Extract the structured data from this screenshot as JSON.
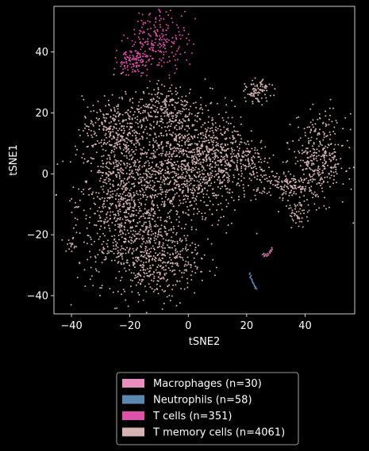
{
  "chart_data": {
    "type": "scatter",
    "xlabel": "tSNE2",
    "ylabel": "tSNE1",
    "xlim": [
      -46,
      57
    ],
    "ylim": [
      -46,
      55
    ],
    "xticks": [
      -40,
      -20,
      0,
      20,
      40
    ],
    "yticks": [
      -40,
      -20,
      0,
      20,
      40
    ],
    "xtick_labels": [
      "−40",
      "−20",
      "0",
      "20",
      "40"
    ],
    "ytick_labels": [
      "−40",
      "−20",
      "0",
      "20",
      "40"
    ],
    "background": "#000000",
    "legend_position": "below",
    "series": [
      {
        "name": "Macrophages (n=30)",
        "color": "#e37fb9",
        "points": [
          [
            25.5,
            -26.5
          ],
          [
            26.2,
            -26.8
          ],
          [
            26.9,
            -27.0
          ],
          [
            27.5,
            -26.6
          ],
          [
            28.0,
            -26.0
          ],
          [
            28.4,
            -25.4
          ],
          [
            28.7,
            -24.8
          ],
          [
            25.9,
            -26.2
          ],
          [
            26.6,
            -26.4
          ],
          [
            27.2,
            -26.2
          ],
          [
            27.8,
            -25.6
          ],
          [
            28.2,
            -25.1
          ],
          [
            28.6,
            -24.3
          ],
          [
            26.0,
            -27.1
          ],
          [
            27.0,
            -26.9
          ]
        ]
      },
      {
        "name": "Neutrophils (n=58)",
        "color": "#5b89b0",
        "points": [
          [
            21.0,
            -33.0
          ],
          [
            21.3,
            -33.8
          ],
          [
            21.6,
            -34.5
          ],
          [
            21.9,
            -35.2
          ],
          [
            22.2,
            -35.9
          ],
          [
            22.5,
            -36.5
          ],
          [
            22.8,
            -37.0
          ],
          [
            23.1,
            -37.4
          ],
          [
            23.4,
            -37.8
          ],
          [
            21.2,
            -34.1
          ],
          [
            21.8,
            -34.8
          ],
          [
            22.4,
            -36.0
          ],
          [
            22.0,
            -35.5
          ],
          [
            21.5,
            -33.4
          ],
          [
            22.7,
            -36.8
          ],
          [
            23.0,
            -37.2
          ],
          [
            21.1,
            -32.6
          ],
          [
            22.9,
            -37.6
          ]
        ]
      },
      {
        "name": "T cells (n=351)",
        "color": "#d94fa5",
        "clusters": [
          {
            "center": [
              -10,
              44
            ],
            "spread": [
              5.0,
              5.0
            ],
            "count": 210
          },
          {
            "center": [
              -19,
              37
            ],
            "spread": [
              3.0,
              2.2
            ],
            "count": 110
          }
        ]
      },
      {
        "name": "T memory cells (n=4061)",
        "color": "#d4b3b3",
        "clusters": [
          {
            "center": [
              -22,
              -10
            ],
            "spread": [
              8.0,
              13.0
            ],
            "count": 900
          },
          {
            "center": [
              -2,
              2
            ],
            "spread": [
              9.0,
              10.0
            ],
            "count": 900
          },
          {
            "center": [
              -10,
              -28
            ],
            "spread": [
              7.0,
              6.5
            ],
            "count": 380
          },
          {
            "center": [
              -25,
              15
            ],
            "spread": [
              5.5,
              5.0
            ],
            "count": 280
          },
          {
            "center": [
              -8,
              22
            ],
            "spread": [
              5.0,
              3.5
            ],
            "count": 200
          },
          {
            "center": [
              10,
              5
            ],
            "spread": [
              6.0,
              7.0
            ],
            "count": 350
          },
          {
            "center": [
              45,
              5
            ],
            "spread": [
              4.5,
              7.0
            ],
            "count": 330
          },
          {
            "center": [
              33,
              -4
            ],
            "spread": [
              5.0,
              3.0
            ],
            "count": 160
          },
          {
            "center": [
              24,
              27
            ],
            "spread": [
              2.2,
              1.8
            ],
            "count": 90
          },
          {
            "center": [
              -40,
              -24
            ],
            "spread": [
              0.8,
              1.3
            ],
            "count": 14
          },
          {
            "center": [
              22,
              5
            ],
            "spread": [
              3.0,
              3.0
            ],
            "count": 90
          },
          {
            "center": [
              38,
              -13
            ],
            "spread": [
              2.0,
              2.0
            ],
            "count": 45
          }
        ]
      }
    ]
  }
}
